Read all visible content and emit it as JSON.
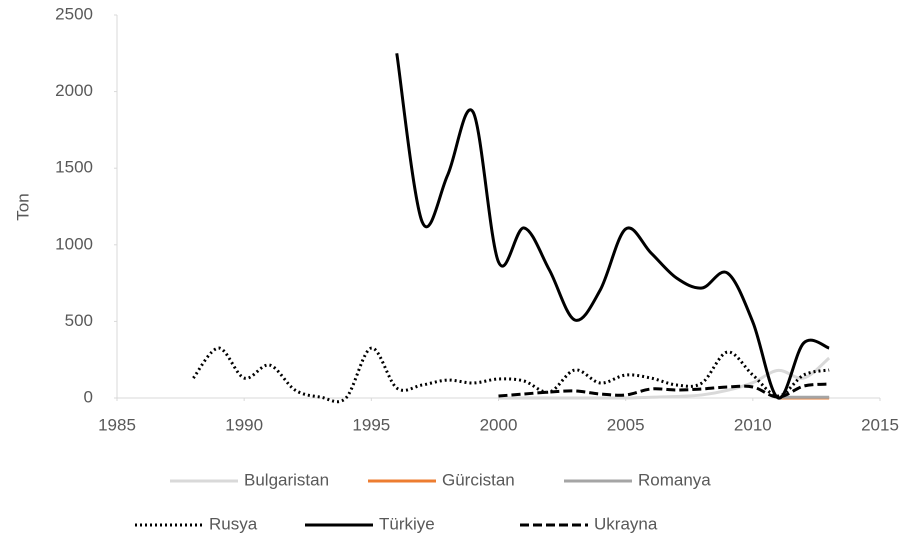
{
  "chart_data": {
    "type": "line",
    "y_label": "Ton",
    "x": [
      1988,
      1989,
      1990,
      1991,
      1992,
      1993,
      1994,
      1995,
      1996,
      1997,
      1998,
      1999,
      2000,
      2001,
      2002,
      2003,
      2004,
      2005,
      2006,
      2007,
      2008,
      2009,
      2010,
      2011,
      2012,
      2013
    ],
    "series": [
      {
        "name": "Bulgaristan",
        "color": "#d9d9d9",
        "style": "solid",
        "values": [
          null,
          null,
          null,
          null,
          null,
          null,
          null,
          null,
          null,
          null,
          null,
          null,
          0,
          0,
          0,
          0,
          0,
          0,
          5,
          10,
          20,
          50,
          100,
          180,
          130,
          261
        ]
      },
      {
        "name": "Gürcistan",
        "color": "#ed7d31",
        "style": "solid",
        "values": [
          null,
          null,
          null,
          null,
          null,
          null,
          null,
          null,
          null,
          null,
          null,
          null,
          null,
          null,
          null,
          null,
          null,
          null,
          null,
          null,
          null,
          null,
          null,
          0,
          0,
          0
        ]
      },
      {
        "name": "Romanya",
        "color": "#a5a5a5",
        "style": "solid",
        "values": [
          null,
          null,
          null,
          null,
          null,
          null,
          null,
          null,
          null,
          null,
          null,
          null,
          null,
          null,
          null,
          null,
          null,
          null,
          null,
          null,
          null,
          null,
          null,
          5,
          5,
          5
        ]
      },
      {
        "name": "Rusya",
        "color": "#000000",
        "style": "dotted",
        "values": [
          130,
          326,
          130,
          215,
          52,
          6,
          0,
          326,
          65,
          85,
          117,
          98,
          124,
          111,
          39,
          183,
          98,
          150,
          130,
          85,
          98,
          300,
          150,
          13,
          150,
          183
        ]
      },
      {
        "name": "Türkiye",
        "color": "#000000",
        "style": "solid",
        "values": [
          null,
          null,
          null,
          null,
          null,
          null,
          null,
          null,
          2250,
          1149,
          1455,
          1867,
          888,
          1110,
          836,
          509,
          705,
          1103,
          946,
          783,
          718,
          816,
          496,
          0,
          359,
          326
        ]
      },
      {
        "name": "Ukrayna",
        "color": "#000000",
        "style": "dashed",
        "values": [
          null,
          null,
          null,
          null,
          null,
          null,
          null,
          null,
          null,
          null,
          null,
          null,
          13,
          26,
          39,
          46,
          26,
          20,
          59,
          52,
          59,
          72,
          72,
          6,
          78,
          91
        ]
      }
    ],
    "xlim": [
      1985,
      2015
    ],
    "xticks": [
      1985,
      1990,
      1995,
      2000,
      2005,
      2010,
      2015
    ],
    "ylim": [
      0,
      2500
    ],
    "yticks": [
      0,
      500,
      1000,
      1500,
      2000,
      2500
    ],
    "smooth": true,
    "grid": false,
    "legend": "bottom"
  }
}
